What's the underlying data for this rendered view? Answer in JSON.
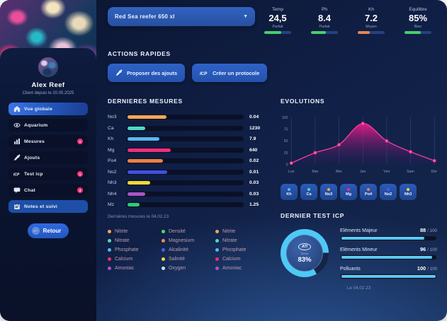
{
  "colors": {
    "accent_blue": "#2f62c8",
    "gauge_ring": "#4ec9f5",
    "gauge_rest": "#152548",
    "badge": "#f4337a"
  },
  "sidebar": {
    "user": {
      "name": "Alex Reef",
      "subtitle": "Client depuis le 20.05.2025"
    },
    "items": [
      {
        "label": "Vue globale",
        "icon": "home-icon",
        "active": true
      },
      {
        "label": "Aquarium",
        "icon": "aquarium-icon"
      },
      {
        "label": "Mesures",
        "icon": "bar-chart-icon",
        "badge": "1"
      },
      {
        "label": "Ajouts",
        "icon": "pipette-icon"
      },
      {
        "label": "Test icp",
        "icon": "icp-icon",
        "badge": "1"
      },
      {
        "label": "Chat",
        "icon": "chat-icon",
        "badge": "3"
      },
      {
        "label": "Notes et suivi",
        "icon": "notes-icon",
        "highlight": true
      }
    ],
    "back_label": "Retour"
  },
  "header": {
    "tank_selector": "Red Sea reefer 650 xl",
    "stats": [
      {
        "label": "Temp",
        "value": "24,5",
        "status": "Parfait",
        "pct": 62,
        "color": "#45d06a"
      },
      {
        "label": "Ph",
        "value": "8.4",
        "status": "Parfait",
        "pct": 55,
        "color": "#45d06a"
      },
      {
        "label": "Kh",
        "value": "7.2",
        "status": "Moyen",
        "pct": 45,
        "color": "#e8854e"
      },
      {
        "label": "Equilibre",
        "value": "85%",
        "status": "Bien",
        "pct": 60,
        "color": "#45d06a"
      }
    ]
  },
  "actions": {
    "title": "ACTIONS RAPIDES",
    "buttons": [
      {
        "label": "Proposer des ajouts",
        "icon": "pipette-icon"
      },
      {
        "label": "Créer un protocole",
        "icon": "icp-icon"
      }
    ]
  },
  "measures": {
    "title": "DERNIERES MESURES",
    "rows": [
      {
        "label": "No3",
        "value": "0.04",
        "pct": 33,
        "color": "#f5a653"
      },
      {
        "label": "Ca",
        "value": "1230",
        "pct": 15,
        "color": "#4dd9c6"
      },
      {
        "label": "Kh",
        "value": "7.9",
        "pct": 27,
        "color": "#5ab6f0"
      },
      {
        "label": "Mg",
        "value": "640",
        "pct": 37,
        "color": "#ee2f7b"
      },
      {
        "label": "Po4",
        "value": "0.02",
        "pct": 30,
        "color": "#ef8143"
      },
      {
        "label": "No2",
        "value": "0.01",
        "pct": 34,
        "color": "#3f51e0"
      },
      {
        "label": "Nh3",
        "value": "0.03",
        "pct": 19,
        "color": "#f0d93c"
      },
      {
        "label": "Nh4",
        "value": "0.03",
        "pct": 15,
        "color": "#a855c8"
      },
      {
        "label": "Mz",
        "value": "1.25",
        "pct": 10,
        "color": "#2ecc71"
      }
    ],
    "footnote": "Dernières mesures le 04.02.23",
    "legend_columns": [
      [
        {
          "label": "Nitrite",
          "color": "#f5a653"
        },
        {
          "label": "Nitrate",
          "color": "#4dd9c6"
        },
        {
          "label": "Phosphate",
          "color": "#5ab6f0"
        },
        {
          "label": "Calcium",
          "color": "#ee2f6e"
        },
        {
          "label": "Amoniac",
          "color": "#a855c8"
        }
      ],
      [
        {
          "label": "Densité",
          "color": "#4cd964"
        },
        {
          "label": "Magnesium",
          "color": "#f08a5a"
        },
        {
          "label": "Alcalinité",
          "color": "#4f5be0"
        },
        {
          "label": "Salinité",
          "color": "#f0d93c"
        },
        {
          "label": "Oxygen",
          "color": "#bfe3f7"
        }
      ],
      [
        {
          "label": "Nitrite",
          "color": "#f5a653"
        },
        {
          "label": "Nitrate",
          "color": "#4dd9c6"
        },
        {
          "label": "Phosphate",
          "color": "#5ab6f0"
        },
        {
          "label": "Calcium",
          "color": "#ee2f6e"
        },
        {
          "label": "Amoniac",
          "color": "#a855c8"
        }
      ]
    ]
  },
  "chart_data": {
    "type": "area",
    "title": "EVOLUTIONS",
    "x": [
      "Lun",
      "Mar",
      "Mer",
      "Jeu",
      "Ven",
      "Sam",
      "Dim"
    ],
    "values": [
      3,
      25,
      42,
      87,
      50,
      27,
      8
    ],
    "ylim": [
      0,
      100
    ],
    "yticks": [
      0,
      25,
      50,
      75,
      100
    ],
    "grid": "vertical",
    "line_color": "#f03f9d",
    "point_color": "#ff5aa8",
    "fill_top": "#ec1c8c",
    "fill_bottom": "#2b1a5e"
  },
  "chips": [
    {
      "label": "Kh",
      "color": "#5ab6f0"
    },
    {
      "label": "Ca",
      "color": "#4dd9c6"
    },
    {
      "label": "No3",
      "color": "#f5a653"
    },
    {
      "label": "Mg",
      "color": "#ee2f7b"
    },
    {
      "label": "Po4",
      "color": "#ef8143"
    },
    {
      "label": "No2",
      "color": "#4f5be0"
    },
    {
      "label": "Nh3",
      "color": "#f0d93c"
    }
  ],
  "icp": {
    "title": "DERNIER TEST ICP",
    "gauge": {
      "pct": 83,
      "value": "83%",
      "logo": "ATI",
      "caption": "Score"
    },
    "bars": [
      {
        "label": "Eléments Majeur",
        "value": "88",
        "total": "/ 100",
        "pct": 88
      },
      {
        "label": "Eléments Mineur",
        "value": "96",
        "total": "/ 100",
        "pct": 96
      },
      {
        "label": "Polluants",
        "value": "100",
        "total": "/ 100",
        "pct": 100
      }
    ],
    "date": "Le 04.02.23"
  }
}
